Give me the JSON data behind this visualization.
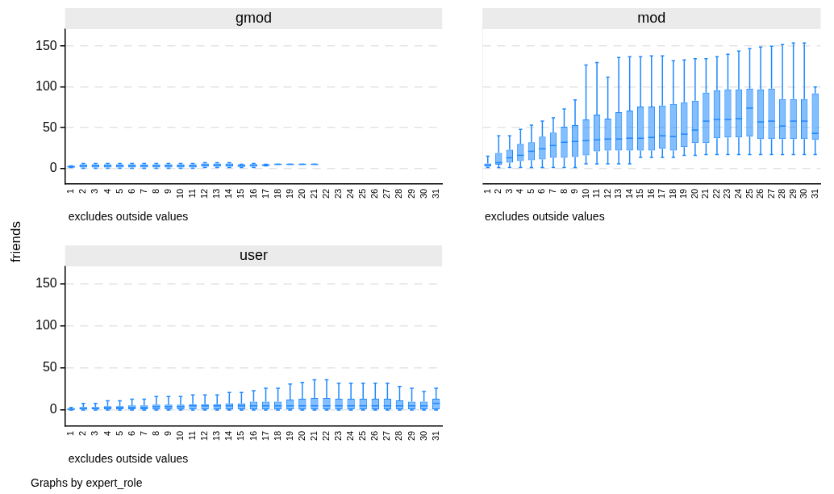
{
  "chart_data": [
    {
      "type": "box",
      "title": "gmod",
      "ylabel": "friends",
      "color": "#1e88ff",
      "grid": "y",
      "ylim": [
        -19,
        171
      ],
      "yticks": [
        0,
        50,
        100,
        150
      ],
      "annotations": [
        "excludes outside values"
      ],
      "categories": [
        "1",
        "2",
        "3",
        "4",
        "5",
        "6",
        "7",
        "8",
        "9",
        "10",
        "11",
        "12",
        "13",
        "14",
        "15",
        "16",
        "17",
        "18",
        "19",
        "20",
        "21",
        "22",
        "23",
        "24",
        "25",
        "26",
        "27",
        "28",
        "29",
        "30",
        "31"
      ],
      "boxes": [
        {
          "low": 1,
          "q1": 1,
          "median": 2,
          "q3": 3,
          "high": 3
        },
        {
          "low": 0,
          "q1": 1,
          "median": 3,
          "q3": 5,
          "high": 6
        },
        {
          "low": 0,
          "q1": 1,
          "median": 3,
          "q3": 5,
          "high": 6
        },
        {
          "low": 0,
          "q1": 1,
          "median": 3,
          "q3": 5,
          "high": 6
        },
        {
          "low": 0,
          "q1": 1,
          "median": 3,
          "q3": 5,
          "high": 6
        },
        {
          "low": 0,
          "q1": 1,
          "median": 3,
          "q3": 5,
          "high": 6
        },
        {
          "low": 0,
          "q1": 1,
          "median": 3,
          "q3": 5,
          "high": 6
        },
        {
          "low": 0,
          "q1": 1,
          "median": 3,
          "q3": 5,
          "high": 6
        },
        {
          "low": 0,
          "q1": 1,
          "median": 3,
          "q3": 5,
          "high": 6
        },
        {
          "low": 0,
          "q1": 1,
          "median": 3,
          "q3": 5,
          "high": 6
        },
        {
          "low": 0,
          "q1": 1,
          "median": 3,
          "q3": 5,
          "high": 6
        },
        {
          "low": 1,
          "q1": 2,
          "median": 4,
          "q3": 6,
          "high": 7
        },
        {
          "low": 1,
          "q1": 2,
          "median": 4,
          "q3": 6,
          "high": 7
        },
        {
          "low": 1,
          "q1": 2,
          "median": 4,
          "q3": 6,
          "high": 7
        },
        {
          "low": 1,
          "q1": 2,
          "median": 3,
          "q3": 5,
          "high": 5
        },
        {
          "low": 1,
          "q1": 2,
          "median": 4,
          "q3": 5,
          "high": 6
        },
        {
          "low": 3,
          "q1": 3,
          "median": 4,
          "q3": 5,
          "high": 5
        },
        {
          "low": 5,
          "q1": 5,
          "median": 5,
          "q3": 5,
          "high": 5
        },
        {
          "low": 5,
          "q1": 5,
          "median": 5,
          "q3": 5,
          "high": 5
        },
        {
          "low": 5,
          "q1": 5,
          "median": 5,
          "q3": 5,
          "high": 5
        },
        {
          "low": 5,
          "q1": 5,
          "median": 5,
          "q3": 5,
          "high": 5
        },
        null,
        null,
        null,
        null,
        null,
        null,
        null,
        null,
        null,
        null
      ]
    },
    {
      "type": "box",
      "title": "mod",
      "color": "#1e88ff",
      "grid": "y",
      "ylim": [
        -19,
        171
      ],
      "yticks": [
        0,
        50,
        100,
        150
      ],
      "tick_labels": "x",
      "annotations": [
        "excludes outside values"
      ],
      "categories": [
        "1",
        "2",
        "3",
        "4",
        "5",
        "6",
        "7",
        "8",
        "9",
        "10",
        "11",
        "12",
        "13",
        "14",
        "15",
        "16",
        "17",
        "18",
        "19",
        "20",
        "21",
        "22",
        "23",
        "24",
        "25",
        "26",
        "27",
        "28",
        "29",
        "30",
        "31"
      ],
      "boxes": [
        {
          "low": 1,
          "q1": 2,
          "median": 4,
          "q3": 6,
          "high": 15
        },
        {
          "low": 1,
          "q1": 4.5,
          "median": 7,
          "q3": 19,
          "high": 40
        },
        {
          "low": 1,
          "q1": 7,
          "median": 13,
          "q3": 23,
          "high": 40
        },
        {
          "low": 1,
          "q1": 9,
          "median": 16,
          "q3": 30,
          "high": 48
        },
        {
          "low": 1,
          "q1": 10,
          "median": 21,
          "q3": 32,
          "high": 53
        },
        {
          "low": 1,
          "q1": 11,
          "median": 24,
          "q3": 39,
          "high": 58
        },
        {
          "low": 1,
          "q1": 13,
          "median": 28,
          "q3": 44,
          "high": 62
        },
        {
          "low": 1,
          "q1": 13,
          "median": 32,
          "q3": 51,
          "high": 73
        },
        {
          "low": 1,
          "q1": 14,
          "median": 33,
          "q3": 53,
          "high": 84
        },
        {
          "low": 5.5,
          "q1": 16,
          "median": 34,
          "q3": 60,
          "high": 127
        },
        {
          "low": 5.5,
          "q1": 21,
          "median": 35,
          "q3": 66,
          "high": 130
        },
        {
          "low": 5.5,
          "q1": 22,
          "median": 36,
          "q3": 61,
          "high": 112
        },
        {
          "low": 5.5,
          "q1": 22,
          "median": 36,
          "q3": 69,
          "high": 136
        },
        {
          "low": 5.5,
          "q1": 22,
          "median": 37,
          "q3": 71,
          "high": 137
        },
        {
          "low": 13.5,
          "q1": 22,
          "median": 37,
          "q3": 76,
          "high": 137
        },
        {
          "low": 13.5,
          "q1": 22,
          "median": 38,
          "q3": 76,
          "high": 138
        },
        {
          "low": 13.5,
          "q1": 24,
          "median": 40,
          "q3": 77,
          "high": 138
        },
        {
          "low": 13.5,
          "q1": 22,
          "median": 39,
          "q3": 79,
          "high": 132
        },
        {
          "low": 16,
          "q1": 26,
          "median": 42,
          "q3": 81,
          "high": 133
        },
        {
          "low": 16,
          "q1": 31,
          "median": 47,
          "q3": 83,
          "high": 134.5
        },
        {
          "low": 17,
          "q1": 31,
          "median": 58,
          "q3": 93,
          "high": 134.5
        },
        {
          "low": 17,
          "q1": 37,
          "median": 60,
          "q3": 96,
          "high": 137
        },
        {
          "low": 17,
          "q1": 38,
          "median": 60,
          "q3": 97,
          "high": 140
        },
        {
          "low": 17,
          "q1": 38,
          "median": 61,
          "q3": 97,
          "high": 144
        },
        {
          "low": 17,
          "q1": 39,
          "median": 74,
          "q3": 98,
          "high": 147
        },
        {
          "low": 17,
          "q1": 36,
          "median": 57,
          "q3": 97,
          "high": 149
        },
        {
          "low": 17,
          "q1": 36,
          "median": 58,
          "q3": 98,
          "high": 150
        },
        {
          "low": 17,
          "q1": 36,
          "median": 52,
          "q3": 85,
          "high": 152
        },
        {
          "low": 17,
          "q1": 36,
          "median": 58,
          "q3": 85,
          "high": 154
        },
        {
          "low": 17,
          "q1": 36,
          "median": 58,
          "q3": 85,
          "high": 154
        },
        {
          "low": 17,
          "q1": 35,
          "median": 43,
          "q3": 92,
          "high": 100
        }
      ]
    },
    {
      "type": "box",
      "title": "user",
      "color": "#1e88ff",
      "grid": "y",
      "ylim": [
        -19,
        171
      ],
      "yticks": [
        0,
        50,
        100,
        150
      ],
      "annotations": [
        "excludes outside values",
        "Graphs by expert_role"
      ],
      "categories": [
        "1",
        "2",
        "3",
        "4",
        "5",
        "6",
        "7",
        "8",
        "9",
        "10",
        "11",
        "12",
        "13",
        "14",
        "15",
        "16",
        "17",
        "18",
        "19",
        "20",
        "21",
        "22",
        "23",
        "24",
        "25",
        "26",
        "27",
        "28",
        "29",
        "30",
        "31"
      ],
      "boxes": [
        {
          "low": 0,
          "q1": 0,
          "median": 1,
          "q3": 2,
          "high": 3
        },
        {
          "low": 0,
          "q1": 0,
          "median": 2,
          "q3": 3.5,
          "high": 8
        },
        {
          "low": 0,
          "q1": 0,
          "median": 2,
          "q3": 3.5,
          "high": 8
        },
        {
          "low": 0,
          "q1": 1,
          "median": 3,
          "q3": 4.5,
          "high": 11
        },
        {
          "low": 0,
          "q1": 1,
          "median": 3,
          "q3": 4.5,
          "high": 11
        },
        {
          "low": 0,
          "q1": 1,
          "median": 3,
          "q3": 5.5,
          "high": 13
        },
        {
          "low": 0,
          "q1": 1,
          "median": 3,
          "q3": 5.5,
          "high": 13
        },
        {
          "low": 0,
          "q1": 1,
          "median": 4,
          "q3": 6.5,
          "high": 16
        },
        {
          "low": 0,
          "q1": 1,
          "median": 4,
          "q3": 6.5,
          "high": 16
        },
        {
          "low": 0,
          "q1": 1,
          "median": 4,
          "q3": 6.5,
          "high": 16
        },
        {
          "low": 0,
          "q1": 1,
          "median": 5,
          "q3": 7,
          "high": 18
        },
        {
          "low": 0,
          "q1": 1,
          "median": 5,
          "q3": 7,
          "high": 18
        },
        {
          "low": 0,
          "q1": 1,
          "median": 5,
          "q3": 7,
          "high": 18
        },
        {
          "low": 0,
          "q1": 1,
          "median": 5,
          "q3": 8,
          "high": 21
        },
        {
          "low": 0,
          "q1": 1,
          "median": 5,
          "q3": 8,
          "high": 21
        },
        {
          "low": 0,
          "q1": 1,
          "median": 5,
          "q3": 10,
          "high": 23
        },
        {
          "low": 0,
          "q1": 1,
          "median": 5,
          "q3": 10,
          "high": 26
        },
        {
          "low": 0,
          "q1": 1,
          "median": 5,
          "q3": 10,
          "high": 26
        },
        {
          "low": 0,
          "q1": 1,
          "median": 5,
          "q3": 12.5,
          "high": 31
        },
        {
          "low": 0,
          "q1": 1,
          "median": 5,
          "q3": 13.5,
          "high": 33
        },
        {
          "low": 0,
          "q1": 1,
          "median": 5,
          "q3": 14.5,
          "high": 36
        },
        {
          "low": 0,
          "q1": 1,
          "median": 5,
          "q3": 14.5,
          "high": 36
        },
        {
          "low": 0,
          "q1": 1,
          "median": 5,
          "q3": 13.5,
          "high": 32
        },
        {
          "low": 0,
          "q1": 1,
          "median": 5,
          "q3": 13.5,
          "high": 32
        },
        {
          "low": 0,
          "q1": 1,
          "median": 5,
          "q3": 13.5,
          "high": 32
        },
        {
          "low": 0,
          "q1": 1,
          "median": 5,
          "q3": 13.5,
          "high": 32
        },
        {
          "low": 0,
          "q1": 1,
          "median": 5,
          "q3": 13.5,
          "high": 32
        },
        {
          "low": 0,
          "q1": 1,
          "median": 5,
          "q3": 11.5,
          "high": 28
        },
        {
          "low": 0,
          "q1": 1,
          "median": 5,
          "q3": 10,
          "high": 26
        },
        {
          "low": 0,
          "q1": 1,
          "median": 5,
          "q3": 10,
          "high": 22
        },
        {
          "low": 0,
          "q1": 1,
          "median": 8,
          "q3": 13.5,
          "high": 26
        }
      ]
    }
  ]
}
